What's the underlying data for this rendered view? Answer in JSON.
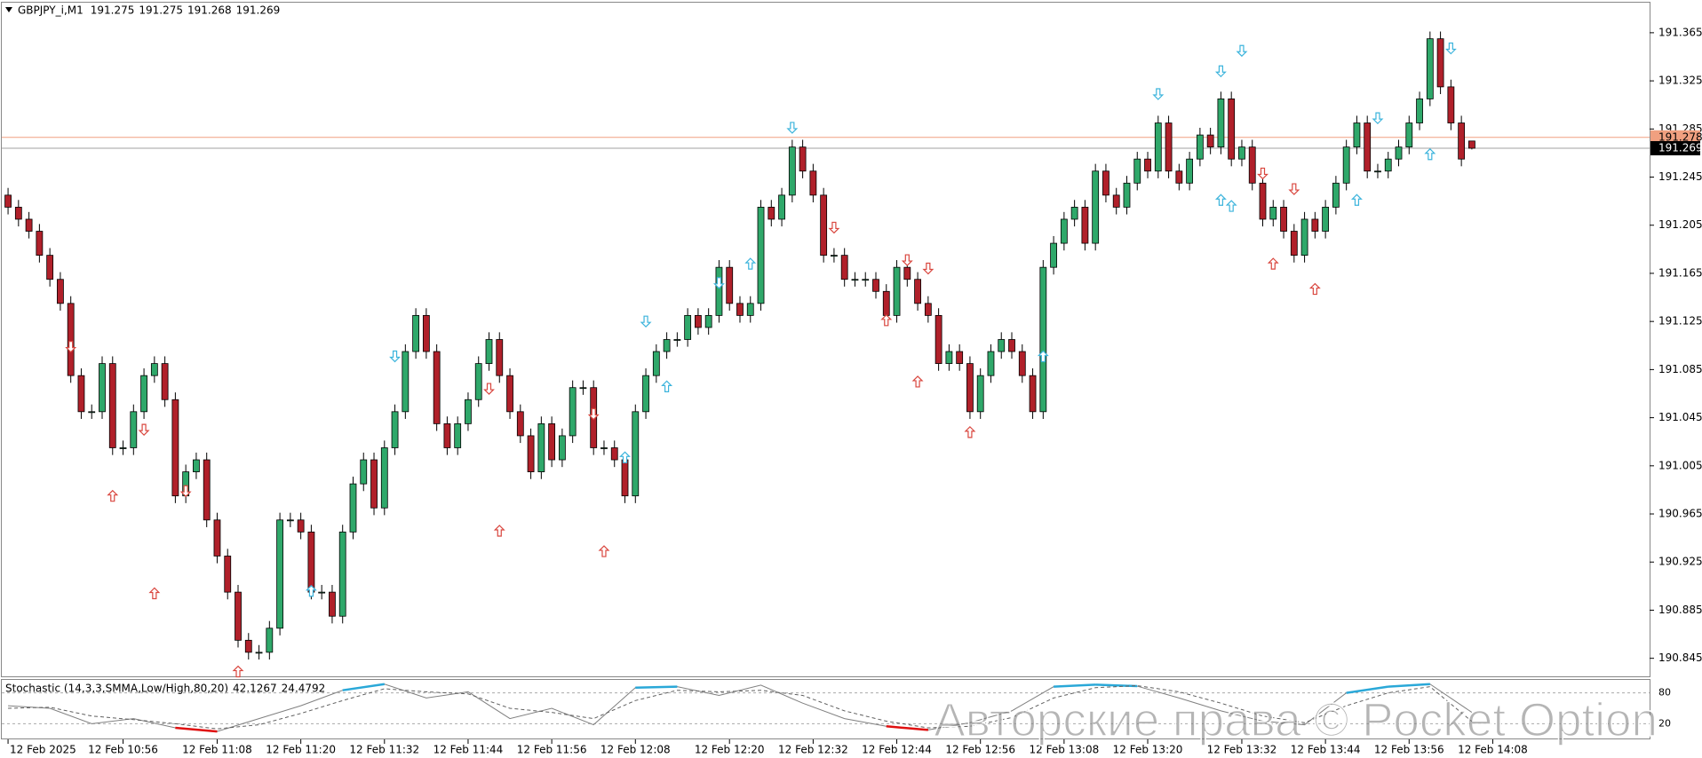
{
  "chart_data": {
    "type": "candlestick",
    "title": "GBPJPY_i,M1",
    "candles": [
      [
        191.23,
        191.236,
        191.214,
        191.22
      ],
      [
        191.22,
        191.226,
        191.204,
        191.21
      ],
      [
        191.21,
        191.216,
        191.194,
        191.2
      ],
      [
        191.2,
        191.206,
        191.174,
        191.18
      ],
      [
        191.18,
        191.186,
        191.154,
        191.16
      ],
      [
        191.16,
        191.166,
        191.134,
        191.14
      ],
      [
        191.14,
        191.146,
        191.074,
        191.08
      ],
      [
        191.08,
        191.086,
        191.044,
        191.05
      ],
      [
        191.05,
        191.056,
        191.044,
        191.05
      ],
      [
        191.05,
        191.096,
        191.044,
        191.09
      ],
      [
        191.09,
        191.096,
        191.014,
        191.02
      ],
      [
        191.02,
        191.026,
        191.014,
        191.02
      ],
      [
        191.02,
        191.056,
        191.014,
        191.05
      ],
      [
        191.05,
        191.086,
        191.044,
        191.08
      ],
      [
        191.08,
        191.096,
        191.074,
        191.09
      ],
      [
        191.09,
        191.096,
        191.054,
        191.06
      ],
      [
        191.06,
        191.066,
        190.974,
        190.98
      ],
      [
        190.98,
        191.006,
        190.974,
        191
      ],
      [
        191,
        191.016,
        190.994,
        191.01
      ],
      [
        191.01,
        191.016,
        190.954,
        190.96
      ],
      [
        190.96,
        190.966,
        190.924,
        190.93
      ],
      [
        190.93,
        190.936,
        190.894,
        190.9
      ],
      [
        190.9,
        190.906,
        190.854,
        190.86
      ],
      [
        190.86,
        190.866,
        190.844,
        190.85
      ],
      [
        190.85,
        190.856,
        190.844,
        190.85
      ],
      [
        190.85,
        190.876,
        190.844,
        190.87
      ],
      [
        190.87,
        190.966,
        190.864,
        190.96
      ],
      [
        190.96,
        190.966,
        190.954,
        190.96
      ],
      [
        190.96,
        190.966,
        190.944,
        190.95
      ],
      [
        190.95,
        190.956,
        190.894,
        190.9
      ],
      [
        190.9,
        190.906,
        190.894,
        190.9
      ],
      [
        190.9,
        190.906,
        190.874,
        190.88
      ],
      [
        190.88,
        190.956,
        190.874,
        190.95
      ],
      [
        190.95,
        190.996,
        190.944,
        190.99
      ],
      [
        190.99,
        191.016,
        190.984,
        191.01
      ],
      [
        191.01,
        191.016,
        190.964,
        190.97
      ],
      [
        190.97,
        191.026,
        190.964,
        191.02
      ],
      [
        191.02,
        191.056,
        191.014,
        191.05
      ],
      [
        191.05,
        191.106,
        191.044,
        191.1
      ],
      [
        191.1,
        191.136,
        191.094,
        191.13
      ],
      [
        191.13,
        191.136,
        191.094,
        191.1
      ],
      [
        191.1,
        191.106,
        191.034,
        191.04
      ],
      [
        191.04,
        191.046,
        191.014,
        191.02
      ],
      [
        191.02,
        191.046,
        191.014,
        191.04
      ],
      [
        191.04,
        191.066,
        191.034,
        191.06
      ],
      [
        191.06,
        191.096,
        191.054,
        191.09
      ],
      [
        191.09,
        191.116,
        191.084,
        191.11
      ],
      [
        191.11,
        191.116,
        191.074,
        191.08
      ],
      [
        191.08,
        191.086,
        191.044,
        191.05
      ],
      [
        191.05,
        191.056,
        191.024,
        191.03
      ],
      [
        191.03,
        191.036,
        190.994,
        191
      ],
      [
        191,
        191.046,
        190.994,
        191.04
      ],
      [
        191.04,
        191.046,
        191.004,
        191.01
      ],
      [
        191.01,
        191.036,
        191.004,
        191.03
      ],
      [
        191.03,
        191.076,
        191.024,
        191.07
      ],
      [
        191.07,
        191.076,
        191.064,
        191.07
      ],
      [
        191.07,
        191.076,
        191.014,
        191.02
      ],
      [
        191.02,
        191.026,
        191.014,
        191.02
      ],
      [
        191.02,
        191.026,
        191.004,
        191.01
      ],
      [
        191.01,
        191.016,
        190.974,
        190.98
      ],
      [
        190.98,
        191.056,
        190.974,
        191.05
      ],
      [
        191.05,
        191.086,
        191.044,
        191.08
      ],
      [
        191.08,
        191.106,
        191.074,
        191.1
      ],
      [
        191.1,
        191.116,
        191.094,
        191.11
      ],
      [
        191.11,
        191.116,
        191.104,
        191.11
      ],
      [
        191.11,
        191.136,
        191.104,
        191.13
      ],
      [
        191.13,
        191.136,
        191.114,
        191.12
      ],
      [
        191.12,
        191.136,
        191.114,
        191.13
      ],
      [
        191.13,
        191.176,
        191.124,
        191.17
      ],
      [
        191.17,
        191.176,
        191.134,
        191.14
      ],
      [
        191.14,
        191.146,
        191.124,
        191.13
      ],
      [
        191.13,
        191.146,
        191.124,
        191.14
      ],
      [
        191.14,
        191.226,
        191.134,
        191.22
      ],
      [
        191.22,
        191.226,
        191.204,
        191.21
      ],
      [
        191.21,
        191.236,
        191.204,
        191.23
      ],
      [
        191.23,
        191.276,
        191.224,
        191.27
      ],
      [
        191.27,
        191.276,
        191.244,
        191.25
      ],
      [
        191.25,
        191.256,
        191.224,
        191.23
      ],
      [
        191.23,
        191.236,
        191.174,
        191.18
      ],
      [
        191.18,
        191.186,
        191.174,
        191.18
      ],
      [
        191.18,
        191.186,
        191.154,
        191.16
      ],
      [
        191.16,
        191.166,
        191.154,
        191.16
      ],
      [
        191.16,
        191.166,
        191.154,
        191.16
      ],
      [
        191.16,
        191.166,
        191.144,
        191.15
      ],
      [
        191.15,
        191.156,
        191.124,
        191.13
      ],
      [
        191.13,
        191.176,
        191.124,
        191.17
      ],
      [
        191.17,
        191.176,
        191.154,
        191.16
      ],
      [
        191.16,
        191.166,
        191.134,
        191.14
      ],
      [
        191.14,
        191.146,
        191.124,
        191.13
      ],
      [
        191.13,
        191.136,
        191.084,
        191.09
      ],
      [
        191.09,
        191.106,
        191.084,
        191.1
      ],
      [
        191.1,
        191.106,
        191.084,
        191.09
      ],
      [
        191.09,
        191.096,
        191.044,
        191.05
      ],
      [
        191.05,
        191.086,
        191.044,
        191.08
      ],
      [
        191.08,
        191.106,
        191.074,
        191.1
      ],
      [
        191.1,
        191.116,
        191.094,
        191.11
      ],
      [
        191.11,
        191.116,
        191.094,
        191.1
      ],
      [
        191.1,
        191.106,
        191.074,
        191.08
      ],
      [
        191.08,
        191.086,
        191.044,
        191.05
      ],
      [
        191.05,
        191.176,
        191.044,
        191.17
      ],
      [
        191.17,
        191.196,
        191.164,
        191.19
      ],
      [
        191.19,
        191.216,
        191.184,
        191.21
      ],
      [
        191.21,
        191.226,
        191.204,
        191.22
      ],
      [
        191.22,
        191.226,
        191.184,
        191.19
      ],
      [
        191.19,
        191.256,
        191.184,
        191.25
      ],
      [
        191.25,
        191.256,
        191.224,
        191.23
      ],
      [
        191.23,
        191.236,
        191.214,
        191.22
      ],
      [
        191.22,
        191.246,
        191.214,
        191.24
      ],
      [
        191.24,
        191.266,
        191.234,
        191.26
      ],
      [
        191.26,
        191.266,
        191.244,
        191.25
      ],
      [
        191.25,
        191.296,
        191.244,
        191.29
      ],
      [
        191.29,
        191.296,
        191.244,
        191.25
      ],
      [
        191.25,
        191.256,
        191.234,
        191.24
      ],
      [
        191.24,
        191.266,
        191.234,
        191.26
      ],
      [
        191.26,
        191.286,
        191.254,
        191.28
      ],
      [
        191.28,
        191.286,
        191.264,
        191.27
      ],
      [
        191.27,
        191.316,
        191.264,
        191.31
      ],
      [
        191.31,
        191.316,
        191.254,
        191.26
      ],
      [
        191.26,
        191.276,
        191.254,
        191.27
      ],
      [
        191.27,
        191.276,
        191.234,
        191.24
      ],
      [
        191.24,
        191.246,
        191.204,
        191.21
      ],
      [
        191.21,
        191.226,
        191.204,
        191.22
      ],
      [
        191.22,
        191.226,
        191.194,
        191.2
      ],
      [
        191.2,
        191.206,
        191.174,
        191.18
      ],
      [
        191.18,
        191.216,
        191.174,
        191.21
      ],
      [
        191.21,
        191.216,
        191.194,
        191.2
      ],
      [
        191.2,
        191.226,
        191.194,
        191.22
      ],
      [
        191.22,
        191.246,
        191.214,
        191.24
      ],
      [
        191.24,
        191.276,
        191.234,
        191.27
      ],
      [
        191.27,
        191.296,
        191.264,
        191.29
      ],
      [
        191.29,
        191.296,
        191.244,
        191.25
      ],
      [
        191.25,
        191.256,
        191.244,
        191.25
      ],
      [
        191.25,
        191.266,
        191.244,
        191.26
      ],
      [
        191.26,
        191.276,
        191.254,
        191.27
      ],
      [
        191.27,
        191.296,
        191.264,
        191.29
      ],
      [
        191.29,
        191.316,
        191.284,
        191.31
      ],
      [
        191.31,
        191.366,
        191.304,
        191.36
      ],
      [
        191.36,
        191.366,
        191.314,
        191.32
      ],
      [
        191.32,
        191.326,
        191.284,
        191.29
      ],
      [
        191.29,
        191.296,
        191.254,
        191.26
      ],
      [
        191.275,
        191.275,
        191.268,
        191.269
      ]
    ],
    "up_color": "#2fa86a",
    "down_color": "#b0202a",
    "wick_color": "#000000",
    "xlim": [
      -0.6,
      157
    ],
    "xticks": [
      {
        "value": 0,
        "label": "12 Feb 2025"
      },
      {
        "value": 11,
        "label": "12 Feb 10:56"
      },
      {
        "value": 20,
        "label": "12 Feb 11:08"
      },
      {
        "value": 28,
        "label": "12 Feb 11:20"
      },
      {
        "value": 36,
        "label": "12 Feb 11:32"
      },
      {
        "value": 44,
        "label": "12 Feb 11:44"
      },
      {
        "value": 52,
        "label": "12 Feb 11:56"
      },
      {
        "value": 60,
        "label": "12 Feb 12:08"
      },
      {
        "value": 69,
        "label": "12 Feb 12:20"
      },
      {
        "value": 77,
        "label": "12 Feb 12:32"
      },
      {
        "value": 85,
        "label": "12 Feb 12:44"
      },
      {
        "value": 93,
        "label": "12 Feb 12:56"
      },
      {
        "value": 101,
        "label": "12 Feb 13:08"
      },
      {
        "value": 109,
        "label": "12 Feb 13:20"
      },
      {
        "value": 118,
        "label": "12 Feb 13:32"
      },
      {
        "value": 126,
        "label": "12 Feb 13:44"
      },
      {
        "value": 134,
        "label": "12 Feb 13:56"
      },
      {
        "value": 142,
        "label": "12 Feb 14:08"
      }
    ],
    "ylim": [
      190.83,
      191.39
    ],
    "yticks": [
      190.845,
      190.885,
      190.925,
      190.965,
      191.005,
      191.045,
      191.085,
      191.125,
      191.165,
      191.205,
      191.245,
      191.285,
      191.325,
      191.365
    ],
    "bid": 191.269,
    "ask": 191.278,
    "bid_color": "#a0a0a0",
    "ask_color": "#f0a080",
    "arrows": [
      {
        "x": 6,
        "y": 191.104,
        "dir": "down",
        "color": "#d9463e"
      },
      {
        "x": 10,
        "y": 190.98,
        "dir": "up",
        "color": "#d9463e"
      },
      {
        "x": 13,
        "y": 191.035,
        "dir": "down",
        "color": "#d9463e"
      },
      {
        "x": 14,
        "y": 190.899,
        "dir": "up",
        "color": "#d9463e"
      },
      {
        "x": 17,
        "y": 190.984,
        "dir": "down",
        "color": "#d9463e"
      },
      {
        "x": 22,
        "y": 190.834,
        "dir": "up",
        "color": "#d9463e"
      },
      {
        "x": 29,
        "y": 190.901,
        "dir": "up",
        "color": "#3cb4dc"
      },
      {
        "x": 37,
        "y": 191.096,
        "dir": "down",
        "color": "#3cb4dc"
      },
      {
        "x": 46,
        "y": 191.069,
        "dir": "down",
        "color": "#d9463e"
      },
      {
        "x": 47,
        "y": 190.951,
        "dir": "up",
        "color": "#d9463e"
      },
      {
        "x": 56,
        "y": 191.048,
        "dir": "down",
        "color": "#d9463e"
      },
      {
        "x": 57,
        "y": 190.934,
        "dir": "up",
        "color": "#d9463e"
      },
      {
        "x": 59,
        "y": 191.012,
        "dir": "up",
        "color": "#3cb4dc"
      },
      {
        "x": 61,
        "y": 191.125,
        "dir": "down",
        "color": "#3cb4dc"
      },
      {
        "x": 63,
        "y": 191.071,
        "dir": "up",
        "color": "#3cb4dc"
      },
      {
        "x": 68,
        "y": 191.157,
        "dir": "down",
        "color": "#3cb4dc"
      },
      {
        "x": 71,
        "y": 191.173,
        "dir": "up",
        "color": "#3cb4dc"
      },
      {
        "x": 75,
        "y": 191.286,
        "dir": "down",
        "color": "#3cb4dc"
      },
      {
        "x": 79,
        "y": 191.203,
        "dir": "down",
        "color": "#d9463e"
      },
      {
        "x": 84,
        "y": 191.126,
        "dir": "up",
        "color": "#d9463e"
      },
      {
        "x": 86,
        "y": 191.176,
        "dir": "down",
        "color": "#d9463e"
      },
      {
        "x": 87,
        "y": 191.075,
        "dir": "up",
        "color": "#d9463e"
      },
      {
        "x": 88,
        "y": 191.169,
        "dir": "down",
        "color": "#d9463e"
      },
      {
        "x": 92,
        "y": 191.033,
        "dir": "up",
        "color": "#d9463e"
      },
      {
        "x": 99,
        "y": 191.096,
        "dir": "up",
        "color": "#3cb4dc"
      },
      {
        "x": 110,
        "y": 191.314,
        "dir": "down",
        "color": "#3cb4dc"
      },
      {
        "x": 116,
        "y": 191.226,
        "dir": "up",
        "color": "#3cb4dc"
      },
      {
        "x": 116,
        "y": 191.333,
        "dir": "down",
        "color": "#3cb4dc"
      },
      {
        "x": 117,
        "y": 191.221,
        "dir": "up",
        "color": "#3cb4dc"
      },
      {
        "x": 118,
        "y": 191.35,
        "dir": "down",
        "color": "#3cb4dc"
      },
      {
        "x": 120,
        "y": 191.248,
        "dir": "down",
        "color": "#d9463e"
      },
      {
        "x": 121,
        "y": 191.173,
        "dir": "up",
        "color": "#d9463e"
      },
      {
        "x": 123,
        "y": 191.235,
        "dir": "down",
        "color": "#d9463e"
      },
      {
        "x": 125,
        "y": 191.152,
        "dir": "up",
        "color": "#d9463e"
      },
      {
        "x": 129,
        "y": 191.226,
        "dir": "up",
        "color": "#3cb4dc"
      },
      {
        "x": 131,
        "y": 191.294,
        "dir": "down",
        "color": "#3cb4dc"
      },
      {
        "x": 136,
        "y": 191.264,
        "dir": "up",
        "color": "#3cb4dc"
      },
      {
        "x": 138,
        "y": 191.352,
        "dir": "down",
        "color": "#3cb4dc"
      }
    ],
    "stochastic": {
      "title": "Stochastic (14,3,3,SMMA,Low/High,80,20)",
      "x": [
        0,
        4,
        8,
        12,
        16,
        20,
        24,
        28,
        32,
        36,
        40,
        44,
        48,
        52,
        56,
        60,
        64,
        68,
        72,
        76,
        80,
        84,
        88,
        92,
        96,
        100,
        104,
        108,
        112,
        116,
        120,
        124,
        128,
        132,
        136,
        140
      ],
      "series": [
        {
          "color": "#808080",
          "dash": false,
          "values": [
            55,
            50,
            20,
            30,
            12,
            5,
            30,
            55,
            85,
            97,
            70,
            82,
            30,
            50,
            18,
            90,
            92,
            75,
            95,
            60,
            30,
            15,
            8,
            22,
            45,
            92,
            96,
            93,
            70,
            45,
            25,
            18,
            80,
            92,
            97,
            42.1267
          ]
        },
        {
          "color": "#606060",
          "dash": true,
          "values": [
            50,
            52,
            35,
            28,
            20,
            10,
            18,
            40,
            65,
            88,
            82,
            78,
            50,
            42,
            30,
            65,
            85,
            82,
            85,
            75,
            45,
            25,
            12,
            15,
            32,
            70,
            90,
            94,
            82,
            60,
            35,
            22,
            55,
            80,
            92,
            24.4792
          ]
        }
      ],
      "ylim": [
        0,
        100
      ],
      "yticks": [
        20,
        80
      ],
      "overbought_color": "#2aa8d8",
      "oversold_color": "#e01010"
    },
    "watermark": "Авторские права © Pocket Option"
  }
}
